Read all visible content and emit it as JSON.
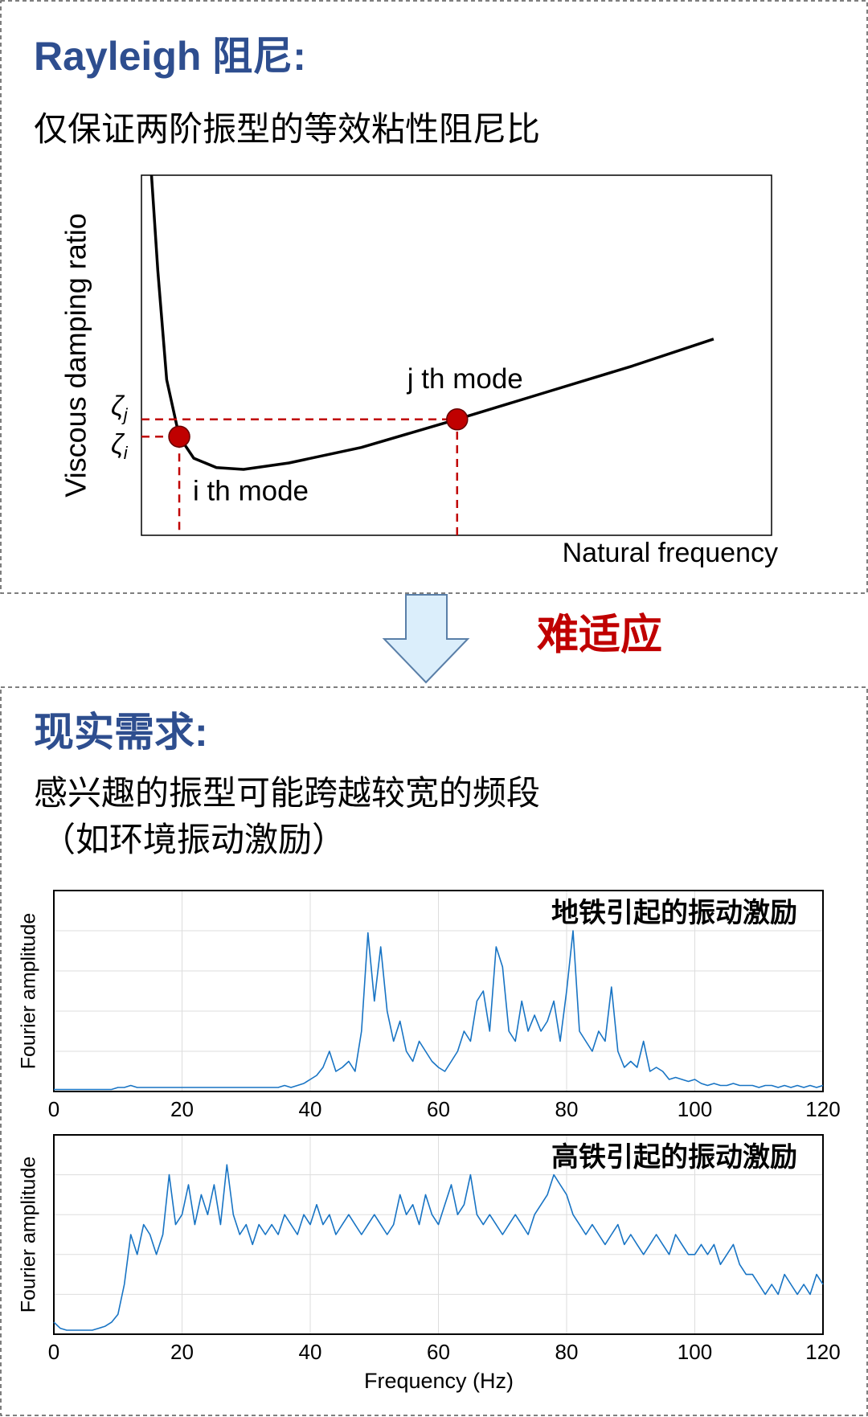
{
  "section1": {
    "title": "Rayleigh 阻尼:",
    "subtitle": "仅保证两阶振型的等效粘性阻尼比"
  },
  "arrow_label": "难适应",
  "section2": {
    "title": "现实需求:",
    "lines": [
      "感兴趣的振型可能跨越较宽的频段",
      "（如环境振动激励）"
    ]
  },
  "chart_data": [
    {
      "type": "line",
      "ylabel": "Viscous damping ratio",
      "xlabel": "Natural frequency",
      "color": "#000000",
      "xlim": [
        0,
        1
      ],
      "ylim": [
        0,
        1
      ],
      "x": [
        0.016,
        0.026,
        0.04,
        0.06,
        0.083,
        0.119,
        0.162,
        0.234,
        0.349,
        0.501,
        0.636,
        0.779,
        0.908
      ],
      "values": [
        1.0,
        0.734,
        0.432,
        0.274,
        0.214,
        0.188,
        0.183,
        0.201,
        0.244,
        0.322,
        0.394,
        0.47,
        0.545
      ],
      "point_color": "#c00000",
      "points": [
        {
          "label": "i th mode",
          "symbol": "ζ",
          "sub": "i",
          "x": 0.06,
          "y": 0.274
        },
        {
          "label": "j th mode",
          "symbol": "ζ",
          "sub": "j",
          "x": 0.501,
          "y": 0.322
        }
      ]
    },
    {
      "type": "line",
      "ylabel": "Fourier amplitude",
      "annotation": "地铁引起的振动激励",
      "color": "#1874c4",
      "grid": true,
      "xlim": [
        0,
        120
      ],
      "ylim": [
        0,
        1
      ],
      "xticks": [
        0,
        20,
        40,
        60,
        80,
        100,
        120
      ],
      "yticks": [
        0.2,
        0.4,
        0.6,
        0.8
      ],
      "x": [
        0,
        1,
        2,
        3,
        4,
        5,
        6,
        7,
        8,
        9,
        10,
        11,
        12,
        13,
        14,
        15,
        16,
        17,
        18,
        19,
        20,
        21,
        22,
        23,
        24,
        25,
        26,
        27,
        28,
        29,
        30,
        31,
        32,
        33,
        34,
        35,
        36,
        37,
        38,
        39,
        40,
        41,
        42,
        43,
        44,
        45,
        46,
        47,
        48,
        49,
        50,
        51,
        52,
        53,
        54,
        55,
        56,
        57,
        58,
        59,
        60,
        61,
        62,
        63,
        64,
        65,
        66,
        67,
        68,
        69,
        70,
        71,
        72,
        73,
        74,
        75,
        76,
        77,
        78,
        79,
        80,
        81,
        82,
        83,
        84,
        85,
        86,
        87,
        88,
        89,
        90,
        91,
        92,
        93,
        94,
        95,
        96,
        97,
        98,
        99,
        100,
        101,
        102,
        103,
        104,
        105,
        106,
        107,
        108,
        109,
        110,
        111,
        112,
        113,
        114,
        115,
        116,
        117,
        118,
        119,
        120
      ],
      "values": [
        0.01,
        0.01,
        0.01,
        0.01,
        0.01,
        0.01,
        0.01,
        0.01,
        0.01,
        0.01,
        0.02,
        0.02,
        0.03,
        0.02,
        0.02,
        0.02,
        0.02,
        0.02,
        0.02,
        0.02,
        0.02,
        0.02,
        0.02,
        0.02,
        0.02,
        0.02,
        0.02,
        0.02,
        0.02,
        0.02,
        0.02,
        0.02,
        0.02,
        0.02,
        0.02,
        0.02,
        0.03,
        0.02,
        0.03,
        0.04,
        0.06,
        0.08,
        0.12,
        0.2,
        0.1,
        0.12,
        0.15,
        0.1,
        0.3,
        0.79,
        0.45,
        0.72,
        0.4,
        0.25,
        0.35,
        0.2,
        0.15,
        0.25,
        0.2,
        0.15,
        0.12,
        0.1,
        0.15,
        0.2,
        0.3,
        0.25,
        0.45,
        0.5,
        0.3,
        0.72,
        0.62,
        0.3,
        0.25,
        0.45,
        0.3,
        0.38,
        0.3,
        0.35,
        0.45,
        0.25,
        0.5,
        0.8,
        0.3,
        0.25,
        0.2,
        0.3,
        0.25,
        0.52,
        0.2,
        0.12,
        0.15,
        0.12,
        0.25,
        0.1,
        0.12,
        0.1,
        0.06,
        0.07,
        0.06,
        0.05,
        0.06,
        0.04,
        0.03,
        0.04,
        0.03,
        0.03,
        0.04,
        0.03,
        0.03,
        0.03,
        0.02,
        0.03,
        0.03,
        0.02,
        0.03,
        0.02,
        0.03,
        0.02,
        0.03,
        0.02,
        0.03
      ]
    },
    {
      "type": "line",
      "ylabel": "Fourier amplitude",
      "xlabel": "Frequency (Hz)",
      "annotation": "高铁引起的振动激励",
      "color": "#1874c4",
      "grid": true,
      "xlim": [
        0,
        120
      ],
      "ylim": [
        0,
        1
      ],
      "xticks": [
        0,
        20,
        40,
        60,
        80,
        100,
        120
      ],
      "yticks": [
        0.2,
        0.4,
        0.6,
        0.8
      ],
      "x": [
        0,
        1,
        2,
        3,
        4,
        5,
        6,
        7,
        8,
        9,
        10,
        11,
        12,
        13,
        14,
        15,
        16,
        17,
        18,
        19,
        20,
        21,
        22,
        23,
        24,
        25,
        26,
        27,
        28,
        29,
        30,
        31,
        32,
        33,
        34,
        35,
        36,
        37,
        38,
        39,
        40,
        41,
        42,
        43,
        44,
        45,
        46,
        47,
        48,
        49,
        50,
        51,
        52,
        53,
        54,
        55,
        56,
        57,
        58,
        59,
        60,
        61,
        62,
        63,
        64,
        65,
        66,
        67,
        68,
        69,
        70,
        71,
        72,
        73,
        74,
        75,
        76,
        77,
        78,
        79,
        80,
        81,
        82,
        83,
        84,
        85,
        86,
        87,
        88,
        89,
        90,
        91,
        92,
        93,
        94,
        95,
        96,
        97,
        98,
        99,
        100,
        101,
        102,
        103,
        104,
        105,
        106,
        107,
        108,
        109,
        110,
        111,
        112,
        113,
        114,
        115,
        116,
        117,
        118,
        119,
        120
      ],
      "values": [
        0.06,
        0.03,
        0.02,
        0.02,
        0.02,
        0.02,
        0.02,
        0.03,
        0.04,
        0.06,
        0.1,
        0.25,
        0.5,
        0.4,
        0.55,
        0.5,
        0.4,
        0.5,
        0.8,
        0.55,
        0.6,
        0.75,
        0.55,
        0.7,
        0.6,
        0.75,
        0.55,
        0.85,
        0.6,
        0.5,
        0.55,
        0.45,
        0.55,
        0.5,
        0.55,
        0.5,
        0.6,
        0.55,
        0.5,
        0.6,
        0.55,
        0.65,
        0.55,
        0.6,
        0.5,
        0.55,
        0.6,
        0.55,
        0.5,
        0.55,
        0.6,
        0.55,
        0.5,
        0.55,
        0.7,
        0.6,
        0.65,
        0.55,
        0.7,
        0.6,
        0.55,
        0.65,
        0.75,
        0.6,
        0.65,
        0.8,
        0.6,
        0.55,
        0.6,
        0.55,
        0.5,
        0.55,
        0.6,
        0.55,
        0.5,
        0.6,
        0.65,
        0.7,
        0.8,
        0.75,
        0.7,
        0.6,
        0.55,
        0.5,
        0.55,
        0.5,
        0.45,
        0.5,
        0.55,
        0.45,
        0.5,
        0.45,
        0.4,
        0.45,
        0.5,
        0.45,
        0.4,
        0.5,
        0.45,
        0.4,
        0.4,
        0.45,
        0.4,
        0.45,
        0.35,
        0.4,
        0.45,
        0.35,
        0.3,
        0.3,
        0.25,
        0.2,
        0.25,
        0.2,
        0.3,
        0.25,
        0.2,
        0.25,
        0.2,
        0.3,
        0.25
      ]
    }
  ]
}
